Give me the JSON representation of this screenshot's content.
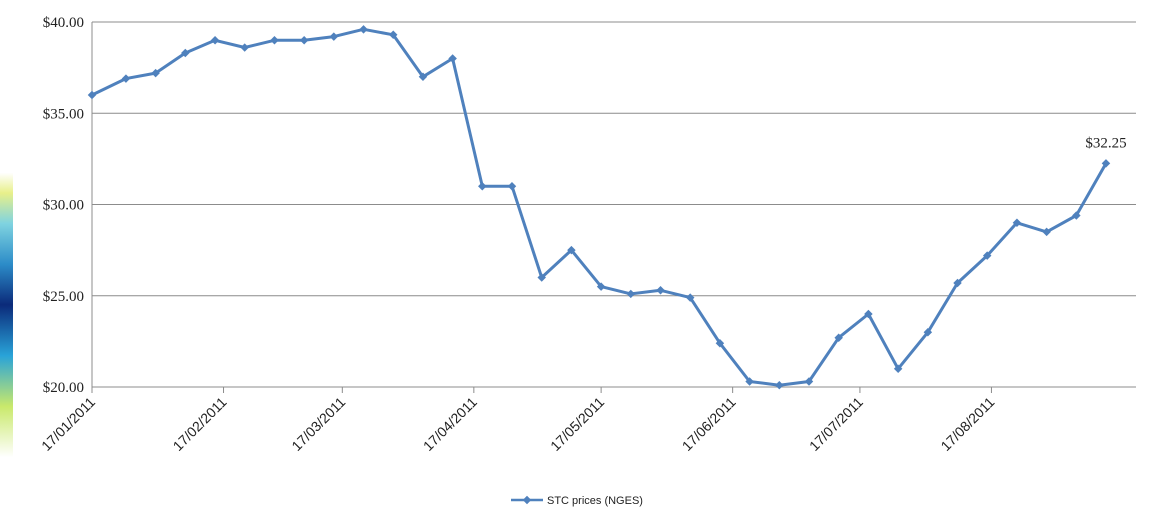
{
  "chart_data": {
    "type": "line",
    "title": "",
    "xlabel": "",
    "ylabel": "",
    "ylim": [
      20,
      40
    ],
    "yticks": [
      "$20.00",
      "$25.00",
      "$30.00",
      "$35.00",
      "$40.00"
    ],
    "xticks": [
      "17/01/2011",
      "17/02/2011",
      "17/03/2011",
      "17/04/2011",
      "17/05/2011",
      "17/06/2011",
      "17/07/2011",
      "17/08/2011"
    ],
    "grid": "horizontal",
    "legend_position": "bottom",
    "series": [
      {
        "name": "STC prices (NGES)",
        "color": "#4f81bd",
        "x": [
          "2011-01-17",
          "2011-01-25",
          "2011-02-01",
          "2011-02-08",
          "2011-02-15",
          "2011-02-22",
          "2011-03-01",
          "2011-03-08",
          "2011-03-15",
          "2011-03-22",
          "2011-03-29",
          "2011-04-05",
          "2011-04-12",
          "2011-04-19",
          "2011-04-26",
          "2011-05-03",
          "2011-05-10",
          "2011-05-17",
          "2011-05-24",
          "2011-05-31",
          "2011-06-07",
          "2011-06-14",
          "2011-06-21",
          "2011-06-28",
          "2011-07-05",
          "2011-07-12",
          "2011-07-19",
          "2011-07-26",
          "2011-08-02",
          "2011-08-09",
          "2011-08-16",
          "2011-08-23",
          "2011-08-30",
          "2011-09-06",
          "2011-09-13"
        ],
        "values": [
          36.0,
          36.9,
          37.2,
          38.3,
          39.0,
          38.6,
          39.0,
          39.0,
          39.2,
          39.6,
          39.3,
          37.0,
          38.0,
          31.0,
          31.0,
          26.0,
          27.5,
          25.5,
          25.1,
          25.3,
          24.9,
          22.4,
          20.3,
          20.1,
          20.3,
          22.7,
          24.0,
          21.0,
          23.0,
          25.7,
          27.2,
          29.0,
          28.5,
          29.4,
          32.25
        ]
      }
    ],
    "annotations": [
      {
        "text": "$32.25",
        "point_index": 34
      }
    ]
  }
}
